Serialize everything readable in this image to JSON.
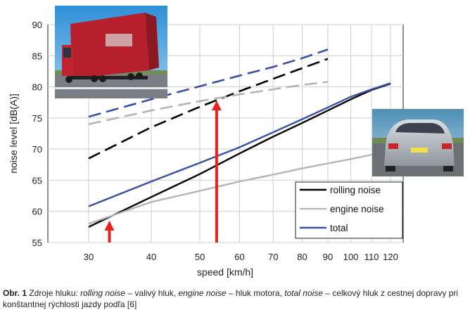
{
  "chart_data": {
    "type": "line",
    "xlabel": "speed [km/h]",
    "ylabel": "noise level [dB(A)]",
    "x_scale": "log",
    "xlim": [
      30,
      120
    ],
    "ylim": [
      55,
      90
    ],
    "x_ticks": [
      30,
      40,
      50,
      60,
      70,
      80,
      90,
      100,
      110,
      120
    ],
    "y_ticks": [
      55,
      60,
      65,
      70,
      75,
      80,
      85,
      90
    ],
    "grid": true,
    "legend_position": "bottom-right",
    "legend": [
      "rolling noise",
      "engine noise",
      "total"
    ],
    "series": [
      {
        "name": "rolling noise",
        "group": "car",
        "color": "#000000",
        "style": "solid",
        "x": [
          30,
          40,
          50,
          60,
          70,
          80,
          90,
          100,
          110,
          120
        ],
        "y": [
          57.5,
          62.3,
          66.0,
          69.3,
          72.0,
          74.2,
          76.2,
          78.0,
          79.5,
          80.5
        ]
      },
      {
        "name": "engine noise",
        "group": "car",
        "color": "#b4b4b4",
        "style": "solid",
        "x": [
          30,
          40,
          50,
          60,
          70,
          80,
          90,
          100,
          110,
          120
        ],
        "y": [
          58.0,
          61.5,
          63.3,
          64.8,
          65.9,
          66.9,
          67.7,
          68.4,
          69.1,
          69.6
        ]
      },
      {
        "name": "total",
        "group": "car",
        "color": "#3a4fa8",
        "style": "solid",
        "x": [
          30,
          40,
          50,
          60,
          70,
          80,
          90,
          100,
          110,
          120
        ],
        "y": [
          60.8,
          64.8,
          67.8,
          70.3,
          72.7,
          74.8,
          76.7,
          78.4,
          79.6,
          80.6
        ]
      },
      {
        "name": "rolling noise",
        "group": "truck",
        "color": "#000000",
        "style": "dashed",
        "x": [
          30,
          40,
          50,
          60,
          70,
          80,
          90
        ],
        "y": [
          68.5,
          73.5,
          76.8,
          79.3,
          81.3,
          83.0,
          84.5
        ]
      },
      {
        "name": "engine noise",
        "group": "truck",
        "color": "#b4b4b4",
        "style": "dashed",
        "x": [
          30,
          40,
          50,
          60,
          70,
          80,
          90
        ],
        "y": [
          74.0,
          76.2,
          77.7,
          78.8,
          79.6,
          80.3,
          80.8
        ]
      },
      {
        "name": "total",
        "group": "truck",
        "color": "#3a4fa8",
        "style": "dashed",
        "x": [
          30,
          40,
          50,
          60,
          70,
          80,
          90
        ],
        "y": [
          75.2,
          78.0,
          80.1,
          81.8,
          83.2,
          84.6,
          86.0
        ]
      }
    ],
    "annotations": [
      {
        "type": "arrow",
        "color": "#e8231b",
        "x": 33,
        "y_from": 55,
        "y_to": 58.5
      },
      {
        "type": "arrow",
        "color": "#e8231b",
        "x": 54,
        "y_from": 55,
        "y_to": 77.8
      }
    ]
  },
  "images": {
    "truck_photo": "red-truck-photo",
    "car_photo": "silver-car-photo"
  },
  "caption": {
    "label": "Obr. 1",
    "t1": " Zdroje hluku: ",
    "i1": "rolling noise",
    "t2": " – valivý hluk, ",
    "i2": "engine noise",
    "t3": " – hluk motora, ",
    "i3": "total noise",
    "t4": " – celkový hluk z cestnej dopravy pri konštantnej rýchlosti jazdy podľa [6]"
  }
}
